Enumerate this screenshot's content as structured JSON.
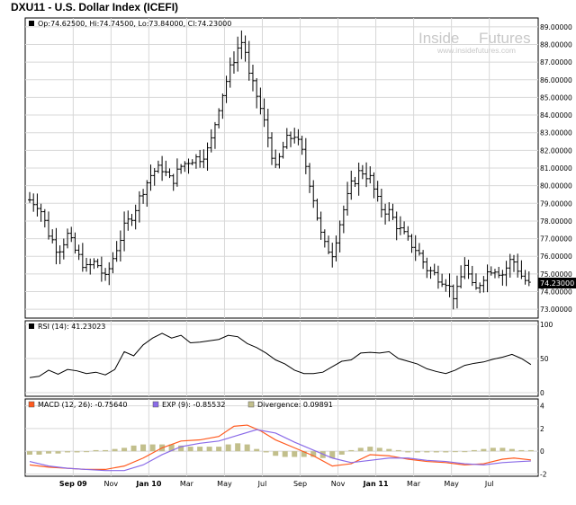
{
  "title": "DXU11 - U.S. Dollar Index (ICEFI)",
  "price_info": "Op:74.62500, Hi:74.74500, Lo:73.84000, Cl:74.23000",
  "last_price_label": "74.23000",
  "watermark": {
    "brand_left": "Inside",
    "brand_right": "Futures",
    "url": "www.insidefutures.com"
  },
  "rsi_label": "RSI (14): 41.23023",
  "macd_legend": [
    {
      "label": "MACD (12, 26): -0.75640",
      "color": "#ff5a1f"
    },
    {
      "label": "EXP (9): -0.85532",
      "color": "#8a6be8"
    },
    {
      "label": "Divergence: 0.09891",
      "color": "#c2bf8c"
    }
  ],
  "colors": {
    "price": "#000000",
    "rsi": "#000000",
    "macd": "#ff5a1f",
    "signal": "#8a6be8",
    "divergence": "#c2bf8c",
    "grid": "#d8d8d8"
  },
  "chart_data": [
    {
      "type": "ohlc",
      "title": "DXU11 - U.S. Dollar Index (ICEFI)",
      "ylim": [
        72.5,
        89.5
      ],
      "y_ticks": [
        "73.00000",
        "74.00000",
        "75.00000",
        "76.00000",
        "77.00000",
        "78.00000",
        "79.00000",
        "80.00000",
        "81.00000",
        "82.00000",
        "83.00000",
        "84.00000",
        "85.00000",
        "86.00000",
        "87.00000",
        "88.00000",
        "89.00000"
      ],
      "x_ticks": [
        "Sep 09",
        "Nov",
        "Jan 10",
        "Mar",
        "May",
        "Jul",
        "Sep",
        "Nov",
        "Jan 11",
        "Mar",
        "May",
        "Jul"
      ],
      "x_ticks_bold": [
        true,
        false,
        true,
        false,
        false,
        false,
        false,
        false,
        true,
        false,
        false,
        false
      ],
      "x_tick_positions": [
        2.3,
        4.3,
        6.3,
        8.3,
        10.3,
        12.3,
        14.3,
        16.3,
        18.3,
        20.3,
        22.3,
        24.3
      ],
      "x_range": [
        0,
        26.6
      ],
      "x_unit": "months from mid-July 2009",
      "closes": [
        [
          0,
          79.2
        ],
        [
          0.5,
          78.9
        ],
        [
          1,
          77.3
        ],
        [
          1.5,
          76.3
        ],
        [
          2,
          77.2
        ],
        [
          2.5,
          76.1
        ],
        [
          3,
          75.3
        ],
        [
          3.5,
          75.7
        ],
        [
          4,
          74.7
        ],
        [
          4.5,
          76.2
        ],
        [
          5,
          77.6
        ],
        [
          5.5,
          78.5
        ],
        [
          6,
          79.8
        ],
        [
          6.5,
          80.8
        ],
        [
          7,
          81.0
        ],
        [
          7.5,
          80.2
        ],
        [
          8,
          81.1
        ],
        [
          8.5,
          81.5
        ],
        [
          9,
          81.6
        ],
        [
          9.5,
          82.1
        ],
        [
          10,
          84.5
        ],
        [
          10.5,
          86.3
        ],
        [
          11,
          87.8
        ],
        [
          11.3,
          88.3
        ],
        [
          11.6,
          86.2
        ],
        [
          12,
          85.1
        ],
        [
          12.5,
          83.2
        ],
        [
          13,
          80.9
        ],
        [
          13.5,
          82.5
        ],
        [
          14,
          82.9
        ],
        [
          14.5,
          81.6
        ],
        [
          15,
          79.3
        ],
        [
          15.5,
          76.7
        ],
        [
          16,
          76.2
        ],
        [
          16.5,
          78.3
        ],
        [
          17,
          80.0
        ],
        [
          17.5,
          80.9
        ],
        [
          18,
          80.4
        ],
        [
          18.5,
          78.8
        ],
        [
          19,
          78.5
        ],
        [
          19.5,
          77.6
        ],
        [
          20,
          76.9
        ],
        [
          20.5,
          76.3
        ],
        [
          21,
          75.3
        ],
        [
          21.5,
          74.9
        ],
        [
          22,
          74.6
        ],
        [
          22.5,
          73.6
        ],
        [
          23,
          75.6
        ],
        [
          23.5,
          73.9
        ],
        [
          24,
          74.9
        ],
        [
          24.5,
          75.4
        ],
        [
          25,
          75.0
        ],
        [
          25.5,
          75.9
        ],
        [
          26,
          74.9
        ],
        [
          26.5,
          74.23
        ]
      ]
    },
    {
      "type": "line",
      "name": "RSI (14)",
      "ylim": [
        0,
        100
      ],
      "y_ticks": [
        0,
        50,
        100
      ],
      "values": [
        [
          0,
          22
        ],
        [
          0.5,
          24
        ],
        [
          1,
          33
        ],
        [
          1.5,
          27
        ],
        [
          2,
          34
        ],
        [
          2.5,
          32
        ],
        [
          3,
          28
        ],
        [
          3.5,
          30
        ],
        [
          4,
          26
        ],
        [
          4.5,
          34
        ],
        [
          5,
          60
        ],
        [
          5.5,
          54
        ],
        [
          6,
          70
        ],
        [
          6.5,
          80
        ],
        [
          7,
          87
        ],
        [
          7.5,
          80
        ],
        [
          8,
          84
        ],
        [
          8.5,
          73
        ],
        [
          9,
          74
        ],
        [
          9.5,
          76
        ],
        [
          10,
          78
        ],
        [
          10.5,
          84
        ],
        [
          11,
          82
        ],
        [
          11.5,
          72
        ],
        [
          12,
          66
        ],
        [
          12.5,
          58
        ],
        [
          13,
          48
        ],
        [
          13.5,
          42
        ],
        [
          14,
          33
        ],
        [
          14.5,
          28
        ],
        [
          15,
          28
        ],
        [
          15.5,
          30
        ],
        [
          16,
          38
        ],
        [
          16.5,
          46
        ],
        [
          17,
          48
        ],
        [
          17.5,
          58
        ],
        [
          18,
          59
        ],
        [
          18.5,
          58
        ],
        [
          19,
          60
        ],
        [
          19.5,
          50
        ],
        [
          20,
          46
        ],
        [
          20.5,
          42
        ],
        [
          21,
          35
        ],
        [
          21.5,
          31
        ],
        [
          22,
          28
        ],
        [
          22.5,
          33
        ],
        [
          23,
          40
        ],
        [
          23.5,
          43
        ],
        [
          24,
          45
        ],
        [
          24.5,
          49
        ],
        [
          25,
          52
        ],
        [
          25.5,
          56
        ],
        [
          26,
          50
        ],
        [
          26.5,
          41.23
        ]
      ]
    },
    {
      "type": "line+bar",
      "name": "MACD (12, 26)",
      "ylim": [
        -2.2,
        4.6
      ],
      "y_ticks": [
        -2,
        0,
        2,
        4
      ],
      "series": [
        {
          "name": "MACD (12, 26)",
          "values": [
            [
              0,
              -1.2
            ],
            [
              1,
              -1.4
            ],
            [
              2,
              -1.5
            ],
            [
              3,
              -1.6
            ],
            [
              4,
              -1.6
            ],
            [
              5,
              -1.3
            ],
            [
              6,
              -0.6
            ],
            [
              7,
              0.3
            ],
            [
              8,
              0.9
            ],
            [
              9,
              1.0
            ],
            [
              10,
              1.3
            ],
            [
              10.8,
              2.2
            ],
            [
              11.5,
              2.3
            ],
            [
              12.2,
              1.8
            ],
            [
              13,
              1.0
            ],
            [
              14,
              0.3
            ],
            [
              15,
              -0.4
            ],
            [
              16,
              -1.3
            ],
            [
              17,
              -1.1
            ],
            [
              18,
              -0.3
            ],
            [
              19,
              -0.4
            ],
            [
              20,
              -0.7
            ],
            [
              21,
              -0.9
            ],
            [
              22,
              -1.0
            ],
            [
              23,
              -1.2
            ],
            [
              24,
              -1.1
            ],
            [
              25,
              -0.7
            ],
            [
              25.6,
              -0.6
            ],
            [
              26.5,
              -0.76
            ]
          ]
        },
        {
          "name": "EXP (9)",
          "values": [
            [
              0,
              -0.9
            ],
            [
              1,
              -1.3
            ],
            [
              2,
              -1.5
            ],
            [
              3,
              -1.6
            ],
            [
              4,
              -1.7
            ],
            [
              5,
              -1.7
            ],
            [
              6,
              -1.2
            ],
            [
              7,
              -0.3
            ],
            [
              8,
              0.4
            ],
            [
              9,
              0.7
            ],
            [
              10,
              0.9
            ],
            [
              11,
              1.4
            ],
            [
              12,
              1.9
            ],
            [
              13,
              1.6
            ],
            [
              14,
              0.8
            ],
            [
              15,
              0.1
            ],
            [
              16,
              -0.6
            ],
            [
              17,
              -1.0
            ],
            [
              18,
              -0.8
            ],
            [
              19,
              -0.6
            ],
            [
              20,
              -0.6
            ],
            [
              21,
              -0.8
            ],
            [
              22,
              -0.9
            ],
            [
              23,
              -1.1
            ],
            [
              24,
              -1.2
            ],
            [
              25,
              -1.0
            ],
            [
              26,
              -0.9
            ],
            [
              26.5,
              -0.86
            ]
          ]
        },
        {
          "name": "Divergence",
          "values": [
            [
              0,
              -0.3
            ],
            [
              0.5,
              -0.3
            ],
            [
              1,
              -0.2
            ],
            [
              1.5,
              -0.2
            ],
            [
              2,
              -0.1
            ],
            [
              2.5,
              -0.1
            ],
            [
              3,
              0.0
            ],
            [
              3.5,
              0.1
            ],
            [
              4,
              0.1
            ],
            [
              4.5,
              0.2
            ],
            [
              5,
              0.3
            ],
            [
              5.5,
              0.5
            ],
            [
              6,
              0.6
            ],
            [
              6.5,
              0.6
            ],
            [
              7,
              0.6
            ],
            [
              7.5,
              0.6
            ],
            [
              8,
              0.5
            ],
            [
              8.5,
              0.4
            ],
            [
              9,
              0.4
            ],
            [
              9.5,
              0.4
            ],
            [
              10,
              0.4
            ],
            [
              10.5,
              0.6
            ],
            [
              11,
              0.7
            ],
            [
              11.5,
              0.6
            ],
            [
              12,
              0.2
            ],
            [
              12.5,
              -0.1
            ],
            [
              13,
              -0.4
            ],
            [
              13.5,
              -0.5
            ],
            [
              14,
              -0.5
            ],
            [
              14.5,
              -0.5
            ],
            [
              15,
              -0.5
            ],
            [
              15.5,
              -0.6
            ],
            [
              16,
              -0.6
            ],
            [
              16.5,
              -0.3
            ],
            [
              17,
              0.1
            ],
            [
              17.5,
              0.3
            ],
            [
              18,
              0.4
            ],
            [
              18.5,
              0.3
            ],
            [
              19,
              0.2
            ],
            [
              19.5,
              0.1
            ],
            [
              20,
              -0.1
            ],
            [
              20.5,
              -0.1
            ],
            [
              21,
              -0.1
            ],
            [
              21.5,
              -0.1
            ],
            [
              22,
              -0.1
            ],
            [
              22.5,
              0.0
            ],
            [
              23,
              0.0
            ],
            [
              23.5,
              0.1
            ],
            [
              24,
              0.2
            ],
            [
              24.5,
              0.3
            ],
            [
              25,
              0.3
            ],
            [
              25.5,
              0.2
            ],
            [
              26,
              0.1
            ],
            [
              26.5,
              0.1
            ]
          ]
        }
      ]
    }
  ]
}
